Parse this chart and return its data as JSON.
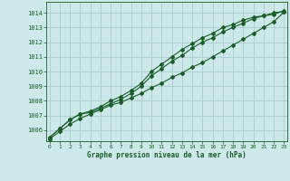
{
  "title": "Graphe pression niveau de la mer (hPa)",
  "bg_color": "#cce8e8",
  "grid_color": "#aacccc",
  "line_color": "#1a5c2a",
  "xlim": [
    -0.3,
    23.3
  ],
  "ylim": [
    1005.25,
    1014.75
  ],
  "yticks": [
    1006,
    1007,
    1008,
    1009,
    1010,
    1011,
    1012,
    1013,
    1014
  ],
  "xticks": [
    0,
    1,
    2,
    3,
    4,
    5,
    6,
    7,
    8,
    9,
    10,
    11,
    12,
    13,
    14,
    15,
    16,
    17,
    18,
    19,
    20,
    21,
    22,
    23
  ],
  "line1_x": [
    0,
    1,
    2,
    3,
    4,
    5,
    6,
    7,
    8,
    9,
    10,
    11,
    12,
    13,
    14,
    15,
    16,
    17,
    18,
    19,
    20,
    21,
    22,
    23
  ],
  "line1_y": [
    1005.5,
    1006.1,
    1006.7,
    1007.1,
    1007.2,
    1007.5,
    1007.8,
    1008.1,
    1008.5,
    1009.0,
    1009.7,
    1010.2,
    1010.7,
    1011.1,
    1011.6,
    1012.0,
    1012.3,
    1012.7,
    1013.0,
    1013.3,
    1013.6,
    1013.8,
    1014.0,
    1014.1
  ],
  "line2_x": [
    0,
    1,
    2,
    3,
    4,
    5,
    6,
    7,
    8,
    9,
    10,
    11,
    12,
    13,
    14,
    15,
    16,
    17,
    18,
    19,
    20,
    21,
    22,
    23
  ],
  "line2_y": [
    1005.5,
    1006.1,
    1006.7,
    1007.1,
    1007.3,
    1007.6,
    1008.0,
    1008.3,
    1008.7,
    1009.2,
    1010.0,
    1010.5,
    1011.0,
    1011.5,
    1011.9,
    1012.3,
    1012.6,
    1013.0,
    1013.2,
    1013.5,
    1013.7,
    1013.8,
    1013.9,
    1014.15
  ],
  "line3_x": [
    0,
    1,
    2,
    3,
    4,
    5,
    6,
    7,
    8,
    9,
    10,
    11,
    12,
    13,
    14,
    15,
    16,
    17,
    18,
    19,
    20,
    21,
    22,
    23
  ],
  "line3_y": [
    1005.4,
    1005.9,
    1006.4,
    1006.8,
    1007.1,
    1007.4,
    1007.7,
    1007.9,
    1008.2,
    1008.5,
    1008.9,
    1009.2,
    1009.6,
    1009.9,
    1010.3,
    1010.6,
    1011.0,
    1011.4,
    1011.8,
    1012.2,
    1012.6,
    1013.0,
    1013.4,
    1014.05
  ]
}
